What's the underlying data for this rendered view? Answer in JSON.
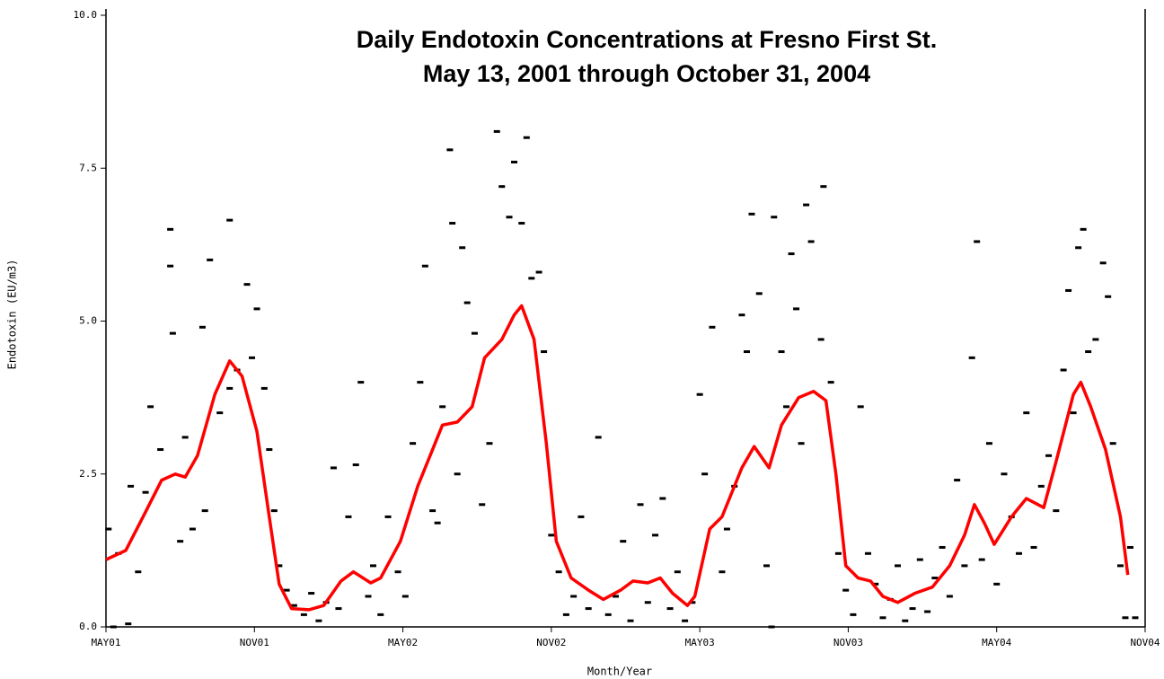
{
  "chart_data": {
    "type": "scatter",
    "title": "Daily Endotoxin Concentrations at Fresno First St.",
    "subtitle": "May 13, 2001 through October 31, 2004",
    "x_label": "Month/Year",
    "y_label": "Endotoxin (EU/m3)",
    "xlim": [
      0,
      42
    ],
    "xticks": [
      {
        "value": 0,
        "label": "MAY01"
      },
      {
        "value": 6,
        "label": "NOV01"
      },
      {
        "value": 12,
        "label": "MAY02"
      },
      {
        "value": 18,
        "label": "NOV02"
      },
      {
        "value": 24,
        "label": "MAY03"
      },
      {
        "value": 30,
        "label": "NOV03"
      },
      {
        "value": 36,
        "label": "MAY04"
      },
      {
        "value": 42,
        "label": "NOV04"
      }
    ],
    "ylim": [
      0,
      10
    ],
    "yticks": [
      {
        "value": 0,
        "label": "0.0"
      },
      {
        "value": 2.5,
        "label": "2.5"
      },
      {
        "value": 5,
        "label": "5.0"
      },
      {
        "value": 7.5,
        "label": "7.5"
      },
      {
        "value": 10,
        "label": "10.0"
      }
    ],
    "series": [
      {
        "type": "scatter",
        "color": "#000000",
        "x": [
          0.1,
          0.3,
          0.5,
          0.9,
          1.0,
          1.3,
          1.6,
          1.8,
          2.2,
          2.6,
          2.6,
          2.7,
          3.0,
          3.2,
          3.5,
          3.9,
          4.0,
          4.2,
          4.6,
          5.0,
          5.0,
          5.3,
          5.7,
          5.9,
          6.1,
          6.4,
          6.6,
          6.8,
          7.0,
          7.3,
          7.6,
          8.0,
          8.3,
          8.6,
          8.9,
          9.2,
          9.4,
          9.8,
          10.1,
          10.3,
          10.6,
          10.8,
          11.1,
          11.4,
          11.8,
          12.1,
          12.4,
          12.7,
          12.9,
          13.2,
          13.4,
          13.6,
          13.9,
          14.0,
          14.2,
          14.4,
          14.6,
          14.9,
          15.2,
          15.5,
          15.8,
          16.0,
          16.3,
          16.5,
          16.8,
          17.0,
          17.2,
          17.5,
          17.7,
          18.0,
          18.3,
          18.6,
          18.9,
          19.2,
          19.5,
          19.9,
          20.3,
          20.6,
          20.9,
          21.2,
          21.6,
          21.9,
          22.2,
          22.5,
          22.8,
          23.1,
          23.4,
          23.7,
          24.0,
          24.2,
          24.5,
          24.9,
          25.1,
          25.4,
          25.7,
          25.9,
          26.1,
          26.4,
          26.7,
          26.9,
          27.0,
          27.3,
          27.5,
          27.7,
          27.9,
          28.1,
          28.3,
          28.5,
          28.9,
          29.0,
          29.3,
          29.6,
          29.9,
          30.2,
          30.5,
          30.8,
          31.1,
          31.4,
          31.7,
          32.0,
          32.3,
          32.6,
          32.9,
          33.2,
          33.5,
          33.8,
          34.1,
          34.4,
          34.7,
          35.0,
          35.2,
          35.4,
          35.7,
          36.0,
          36.3,
          36.6,
          36.9,
          37.2,
          37.5,
          37.8,
          38.1,
          38.4,
          38.7,
          38.9,
          39.1,
          39.3,
          39.5,
          39.7,
          40.0,
          40.3,
          40.5,
          40.7,
          41.0,
          41.2,
          41.4,
          41.6
        ],
        "values": [
          1.6,
          0.0,
          1.2,
          0.05,
          2.3,
          0.9,
          2.2,
          3.6,
          2.9,
          6.5,
          5.9,
          4.8,
          1.4,
          3.1,
          1.6,
          4.9,
          1.9,
          6.0,
          3.5,
          3.9,
          6.65,
          4.2,
          5.6,
          4.4,
          5.2,
          3.9,
          2.9,
          1.9,
          1.0,
          0.6,
          0.35,
          0.2,
          0.55,
          0.1,
          0.4,
          2.6,
          0.3,
          1.8,
          2.65,
          4.0,
          0.5,
          1.0,
          0.2,
          1.8,
          0.9,
          0.5,
          3.0,
          4.0,
          5.9,
          1.9,
          1.7,
          3.6,
          7.8,
          6.6,
          2.5,
          6.2,
          5.3,
          4.8,
          2.0,
          3.0,
          8.1,
          7.2,
          6.7,
          7.6,
          6.6,
          8.0,
          5.7,
          5.8,
          4.5,
          1.5,
          0.9,
          0.2,
          0.5,
          1.8,
          0.3,
          3.1,
          0.2,
          0.5,
          1.4,
          0.1,
          2.0,
          0.4,
          1.5,
          2.1,
          0.3,
          0.9,
          0.1,
          0.4,
          3.8,
          2.5,
          4.9,
          0.9,
          1.6,
          2.3,
          5.1,
          4.5,
          6.75,
          5.45,
          1.0,
          0.0,
          6.7,
          4.5,
          3.6,
          6.1,
          5.2,
          3.0,
          6.9,
          6.3,
          4.7,
          7.2,
          4.0,
          1.2,
          0.6,
          0.2,
          3.6,
          1.2,
          0.7,
          0.15,
          0.45,
          1.0,
          0.1,
          0.3,
          1.1,
          0.25,
          0.8,
          1.3,
          0.5,
          2.4,
          1.0,
          4.4,
          6.3,
          1.1,
          3.0,
          0.7,
          2.5,
          1.8,
          1.2,
          3.5,
          1.3,
          2.3,
          2.8,
          1.9,
          4.2,
          5.5,
          3.5,
          6.2,
          6.5,
          4.5,
          4.7,
          5.95,
          5.4,
          3.0,
          1.0,
          0.15,
          1.3,
          0.15
        ]
      },
      {
        "type": "line",
        "color": "#ff0000",
        "x": [
          0,
          0.8,
          1.5,
          2.25,
          2.8,
          3.2,
          3.7,
          4.4,
          5.0,
          5.5,
          6.1,
          6.6,
          7.0,
          7.5,
          8.2,
          8.8,
          9.5,
          10.0,
          10.7,
          11.1,
          11.9,
          12.6,
          13.1,
          13.6,
          14.2,
          14.8,
          15.3,
          16.0,
          16.5,
          16.8,
          17.3,
          17.8,
          18.2,
          18.8,
          19.5,
          20.1,
          20.8,
          21.3,
          21.9,
          22.4,
          22.9,
          23.5,
          23.8,
          24.4,
          24.9,
          25.7,
          26.2,
          26.8,
          27.3,
          28.0,
          28.6,
          29.1,
          29.5,
          29.9,
          30.4,
          30.9,
          31.4,
          32.0,
          32.7,
          33.4,
          34.1,
          34.7,
          35.1,
          35.5,
          35.9,
          36.6,
          37.2,
          37.9,
          38.4,
          39.1,
          39.4,
          39.8,
          40.4,
          41.0,
          41.3
        ],
        "values": [
          1.1,
          1.25,
          1.8,
          2.4,
          2.5,
          2.45,
          2.8,
          3.8,
          4.35,
          4.1,
          3.2,
          1.8,
          0.7,
          0.3,
          0.28,
          0.35,
          0.75,
          0.9,
          0.72,
          0.8,
          1.4,
          2.3,
          2.8,
          3.3,
          3.35,
          3.6,
          4.4,
          4.7,
          5.1,
          5.25,
          4.7,
          3.0,
          1.4,
          0.8,
          0.6,
          0.45,
          0.6,
          0.75,
          0.72,
          0.8,
          0.55,
          0.35,
          0.5,
          1.6,
          1.8,
          2.6,
          2.95,
          2.6,
          3.3,
          3.75,
          3.85,
          3.7,
          2.5,
          1.0,
          0.8,
          0.75,
          0.5,
          0.4,
          0.55,
          0.65,
          1.0,
          1.5,
          2.0,
          1.7,
          1.35,
          1.8,
          2.1,
          1.95,
          2.7,
          3.8,
          4.0,
          3.6,
          2.9,
          1.8,
          0.85
        ]
      }
    ]
  }
}
